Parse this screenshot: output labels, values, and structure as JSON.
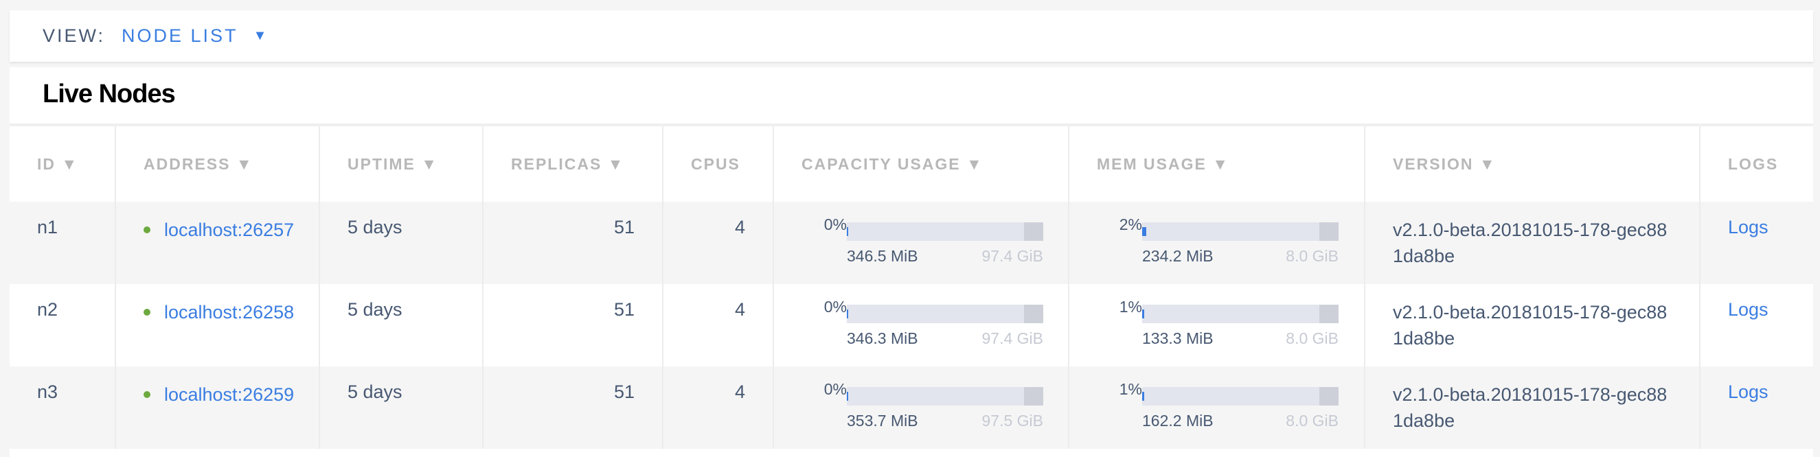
{
  "view": {
    "label": "VIEW:",
    "value": "NODE LIST"
  },
  "title": "Live Nodes",
  "columns": [
    "ID ▼",
    "ADDRESS ▼",
    "UPTIME ▼",
    "REPLICAS ▼",
    "CPUS",
    "CAPACITY USAGE ▼",
    "MEM USAGE ▼",
    "VERSION ▼",
    "LOGS"
  ],
  "rows": [
    {
      "id": "n1",
      "address": "localhost:26257",
      "uptime": "5 days",
      "replicas": "51",
      "cpus": "4",
      "cap_pct": "0%",
      "cap_fill": 0.3,
      "cap_used": "346.5 MiB",
      "cap_total": "97.4 GiB",
      "mem_pct": "2%",
      "mem_fill": 2,
      "mem_used": "234.2 MiB",
      "mem_total": "8.0 GiB",
      "version": "v2.1.0-beta.20181015-178-gec881da8be",
      "logs": "Logs"
    },
    {
      "id": "n2",
      "address": "localhost:26258",
      "uptime": "5 days",
      "replicas": "51",
      "cpus": "4",
      "cap_pct": "0%",
      "cap_fill": 0.3,
      "cap_used": "346.3 MiB",
      "cap_total": "97.4 GiB",
      "mem_pct": "1%",
      "mem_fill": 1,
      "mem_used": "133.3 MiB",
      "mem_total": "8.0 GiB",
      "version": "v2.1.0-beta.20181015-178-gec881da8be",
      "logs": "Logs"
    },
    {
      "id": "n3",
      "address": "localhost:26259",
      "uptime": "5 days",
      "replicas": "51",
      "cpus": "4",
      "cap_pct": "0%",
      "cap_fill": 0.3,
      "cap_used": "353.7 MiB",
      "cap_total": "97.5 GiB",
      "mem_pct": "1%",
      "mem_fill": 1,
      "mem_used": "162.2 MiB",
      "mem_total": "8.0 GiB",
      "version": "v2.1.0-beta.20181015-178-gec881da8be",
      "logs": "Logs"
    }
  ],
  "colors": {
    "accent": "#3a7de1",
    "live": "#6ca93f"
  }
}
